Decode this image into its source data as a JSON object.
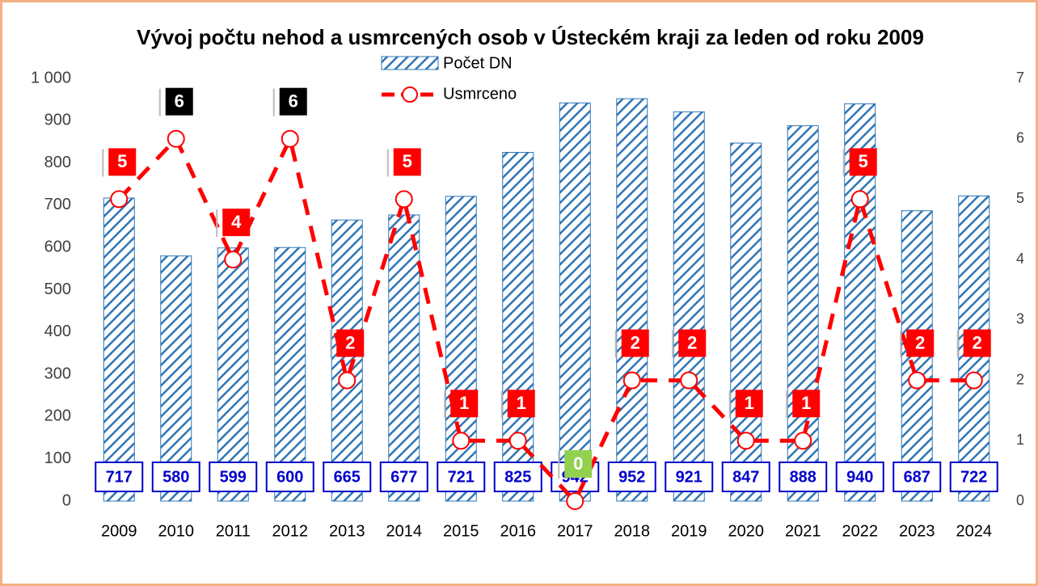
{
  "chart_data": {
    "type": "combo",
    "title": "Vývoj počtu nehod a usmrcených osob v Ústeckém kraji za leden od roku 2009",
    "categories": [
      "2009",
      "2010",
      "2011",
      "2012",
      "2013",
      "2014",
      "2015",
      "2016",
      "2017",
      "2018",
      "2019",
      "2020",
      "2021",
      "2022",
      "2023",
      "2024"
    ],
    "series": [
      {
        "name": "Počet DN",
        "type": "bar",
        "color": "#2e75b6",
        "values": [
          717,
          580,
          599,
          600,
          665,
          677,
          721,
          825,
          942,
          952,
          921,
          847,
          888,
          940,
          687,
          722
        ]
      },
      {
        "name": "Usmrceno",
        "type": "line",
        "axis": "y2",
        "color": "#ff0000",
        "values": [
          5,
          6,
          4,
          6,
          2,
          5,
          1,
          1,
          0,
          2,
          2,
          1,
          1,
          5,
          2,
          2
        ],
        "label_colors": [
          "#ff0000",
          "#000000",
          "#ff0000",
          "#000000",
          "#ff0000",
          "#ff0000",
          "#ff0000",
          "#ff0000",
          "#92d050",
          "#ff0000",
          "#ff0000",
          "#ff0000",
          "#ff0000",
          "#ff0000",
          "#ff0000",
          "#ff0000"
        ]
      }
    ],
    "ylim": [
      0,
      1000
    ],
    "yticks": [
      0,
      100,
      200,
      300,
      400,
      500,
      600,
      700,
      800,
      900,
      {
        "value": 1000,
        "label": "1 000"
      }
    ],
    "y2lim": [
      0,
      7
    ],
    "y2ticks": [
      0,
      1,
      2,
      3,
      4,
      5,
      6,
      7
    ],
    "legend": "top"
  }
}
